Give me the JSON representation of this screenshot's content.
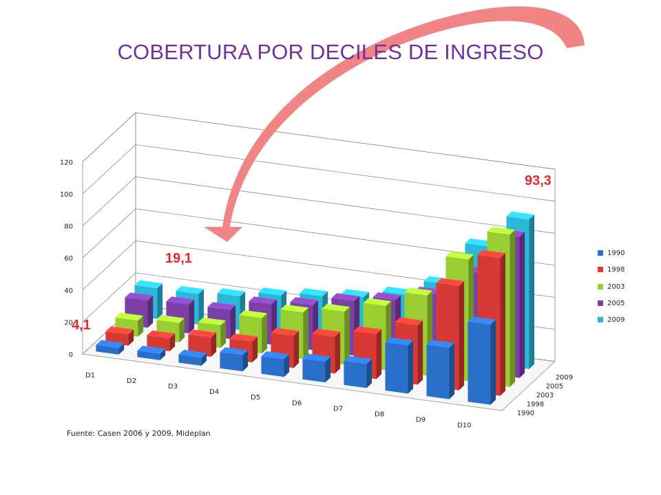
{
  "title": "COBERTURA POR DECILES DE INGRESO",
  "source_note": "Fuente: Casen 2006 y 2009, Mideplan",
  "callouts": {
    "first": "4,1",
    "second": "19,1",
    "third": "93,3"
  },
  "legend": [
    {
      "label": "1990",
      "color": "#2a6fc9"
    },
    {
      "label": "1998",
      "color": "#d73a34"
    },
    {
      "label": "2003",
      "color": "#9acd32"
    },
    {
      "label": "2005",
      "color": "#7b3fa6"
    },
    {
      "label": "2009",
      "color": "#2bb7d9"
    }
  ],
  "colors": {
    "title": "#7030a0",
    "arrow": "#f08080",
    "callout": "#e8262b"
  },
  "chart_data": {
    "type": "bar",
    "subtype": "3d-column",
    "title": "COBERTURA POR DECILES DE INGRESO",
    "categories": [
      "D1",
      "D2",
      "D3",
      "D4",
      "D5",
      "D6",
      "D7",
      "D8",
      "D9",
      "D10"
    ],
    "y_ticks": [
      "0",
      "20",
      "40",
      "60",
      "80",
      "100",
      "120"
    ],
    "ylim": [
      0,
      120
    ],
    "depth_labels": [
      "1990",
      "1998",
      "2003",
      "2005",
      "2009"
    ],
    "series": [
      {
        "name": "1990",
        "values": [
          4.1,
          4,
          5,
          10,
          11,
          13,
          15,
          30,
          32,
          50
        ]
      },
      {
        "name": "1998",
        "values": [
          7,
          8,
          12,
          13,
          20,
          23,
          28,
          37,
          65,
          86
        ]
      },
      {
        "name": "2003",
        "values": [
          10,
          12,
          14,
          22,
          29,
          33,
          40,
          50,
          76,
          95
        ]
      },
      {
        "name": "2005",
        "values": [
          17,
          18,
          18,
          25,
          28,
          34,
          38,
          45,
          62,
          88
        ]
      },
      {
        "name": "2009",
        "values": [
          19.1,
          19,
          21,
          25,
          28,
          31,
          36,
          46,
          73,
          93.3
        ]
      }
    ],
    "grid": true,
    "legend_position": "right"
  }
}
